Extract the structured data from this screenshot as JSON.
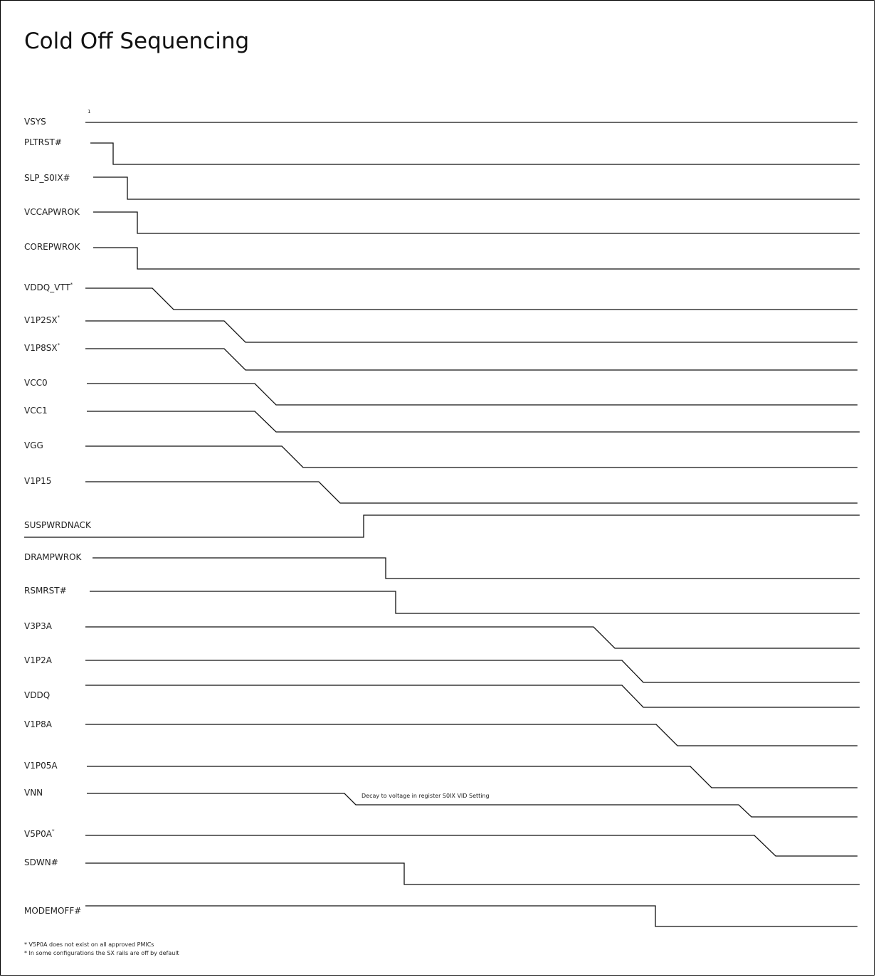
{
  "title": "Cold Off Sequencing",
  "marker_text": "1",
  "footnotes": [
    "* V5P0A does not exist on all approved PMICs",
    "* In some configurations the SX rails are off by default"
  ],
  "signals": [
    {
      "name": "VSYS",
      "label": "VSYS",
      "sup": ""
    },
    {
      "name": "PLTRST#",
      "label": "PLTRST#",
      "sup": ""
    },
    {
      "name": "SLP_S0IX#",
      "label": "SLP_S0IX#",
      "sup": ""
    },
    {
      "name": "VCCAPWROK",
      "label": "VCCAPWROK",
      "sup": ""
    },
    {
      "name": "COREPWROK",
      "label": "COREPWROK",
      "sup": ""
    },
    {
      "name": "VDDQ_VTT",
      "label": "VDDQ_VTT",
      "sup": "*"
    },
    {
      "name": "V1P2SX",
      "label": "V1P2SX",
      "sup": "*"
    },
    {
      "name": "V1P8SX",
      "label": "V1P8SX",
      "sup": "*"
    },
    {
      "name": "VCC0",
      "label": "VCC0",
      "sup": ""
    },
    {
      "name": "VCC1",
      "label": "VCC1",
      "sup": ""
    },
    {
      "name": "VGG",
      "label": "VGG",
      "sup": ""
    },
    {
      "name": "V1P15",
      "label": "V1P15",
      "sup": ""
    },
    {
      "name": "SUSPWRDNACK",
      "label": "SUSPWRDNACK",
      "sup": ""
    },
    {
      "name": "DRAMPWROK",
      "label": "DRAMPWROK",
      "sup": ""
    },
    {
      "name": "RSMRST#",
      "label": "RSMRST#",
      "sup": ""
    },
    {
      "name": "V3P3A",
      "label": "V3P3A",
      "sup": ""
    },
    {
      "name": "V1P2A",
      "label": "V1P2A",
      "sup": ""
    },
    {
      "name": "VDDQ",
      "label": "VDDQ",
      "sup": ""
    },
    {
      "name": "V1P8A",
      "label": "V1P8A",
      "sup": ""
    },
    {
      "name": "V1P05A",
      "label": "V1P05A",
      "sup": ""
    },
    {
      "name": "VNN",
      "label": "VNN",
      "sup": "",
      "note": "Decay to voltage in register S0IX VID Setting"
    },
    {
      "name": "V5P0A",
      "label": "V5P0A",
      "sup": "*"
    },
    {
      "name": "SDWN#",
      "label": "SDWN#",
      "sup": ""
    },
    {
      "name": "MODEMOFF#",
      "label": "MODEMOFF#",
      "sup": ""
    }
  ]
}
